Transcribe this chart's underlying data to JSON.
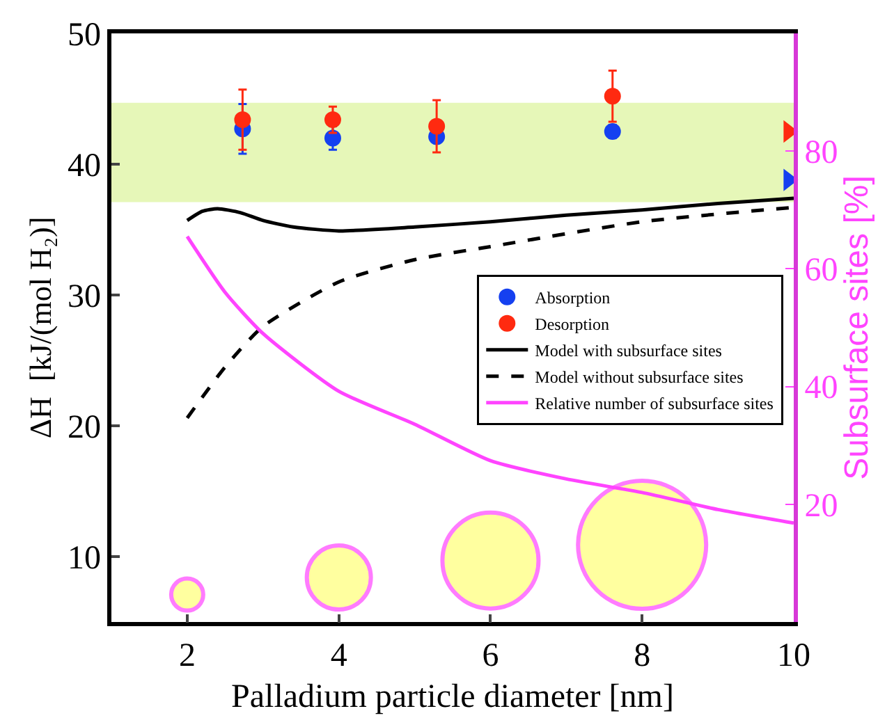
{
  "chart_data": {
    "type": "scatter",
    "xlabel": "Palladium particle diameter [nm]",
    "ylabel": "ΔH  [kJ/(mol H₂)]",
    "y2label": "Subsurface sites [%]",
    "xlim": [
      1,
      10
    ],
    "xticks": [
      2,
      4,
      6,
      8,
      10
    ],
    "ylim": [
      5,
      50
    ],
    "yticks": [
      10,
      20,
      30,
      40,
      50
    ],
    "y2lim": [
      0,
      100
    ],
    "y2ticks": [
      20,
      40,
      60,
      80
    ],
    "grid": false,
    "legend": "right",
    "bands": [
      {
        "axis": "y",
        "from": 37.1,
        "to": 44.7,
        "color": "#e6f7b8"
      }
    ],
    "series": [
      {
        "name": "Absorption",
        "type": "scatter",
        "marker": "circle",
        "color": "#1540f0",
        "x": [
          2.73,
          3.92,
          5.29,
          7.61
        ],
        "values": [
          42.7,
          42.0,
          42.1,
          42.5
        ],
        "errors": [
          1.9,
          0.9,
          null,
          0.5
        ]
      },
      {
        "name": "Desorption",
        "type": "scatter",
        "marker": "circle",
        "color": "#ff2a10",
        "x": [
          2.73,
          3.92,
          5.29,
          7.61
        ],
        "values": [
          43.4,
          43.4,
          42.9,
          45.2
        ],
        "errors": [
          2.3,
          1.0,
          2.0,
          1.95
        ]
      },
      {
        "name": "Model with subsurface sites",
        "type": "line",
        "line_style": "solid",
        "color": "#000000",
        "x": [
          2,
          2.2,
          2.4,
          2.7,
          3,
          3.4,
          4,
          5,
          6,
          7,
          8,
          9,
          10
        ],
        "values": [
          35.7,
          36.4,
          36.6,
          36.3,
          35.7,
          35.2,
          34.9,
          35.2,
          35.6,
          36.1,
          36.5,
          37.0,
          37.4
        ]
      },
      {
        "name": "Model without subsurface sites",
        "type": "line",
        "line_style": "dashed",
        "color": "#000000",
        "x": [
          2,
          2.5,
          3,
          4,
          5,
          6,
          8,
          10
        ],
        "values": [
          20.6,
          24.5,
          27.6,
          31.0,
          32.7,
          33.7,
          35.6,
          36.7
        ]
      },
      {
        "name": "Relative number of subsurface sites",
        "type": "line",
        "line_style": "solid",
        "axis": "y2",
        "color": "#ff44ff",
        "x": [
          2,
          2.5,
          3,
          4,
          5,
          6,
          7,
          8,
          9,
          10
        ],
        "values": [
          65.5,
          56,
          49,
          39.2,
          33.6,
          27.4,
          24.3,
          22,
          19.1,
          16.8
        ]
      },
      {
        "type": "bubble",
        "color": "#ffff77",
        "x": [
          2,
          4,
          6,
          8
        ],
        "values": [
          7.1,
          8.4,
          9.7,
          10.9
        ],
        "sizes": [
          0.0625,
          0.25,
          0.5625,
          1
        ]
      },
      {
        "type": "scatter",
        "marker": "triangle",
        "color": "#ff2a10",
        "x": [
          9.93
        ],
        "values": [
          42.5
        ]
      },
      {
        "type": "scatter",
        "marker": "triangle",
        "color": "#1540f0",
        "x": [
          9.93
        ],
        "values": [
          38.8
        ]
      }
    ]
  }
}
